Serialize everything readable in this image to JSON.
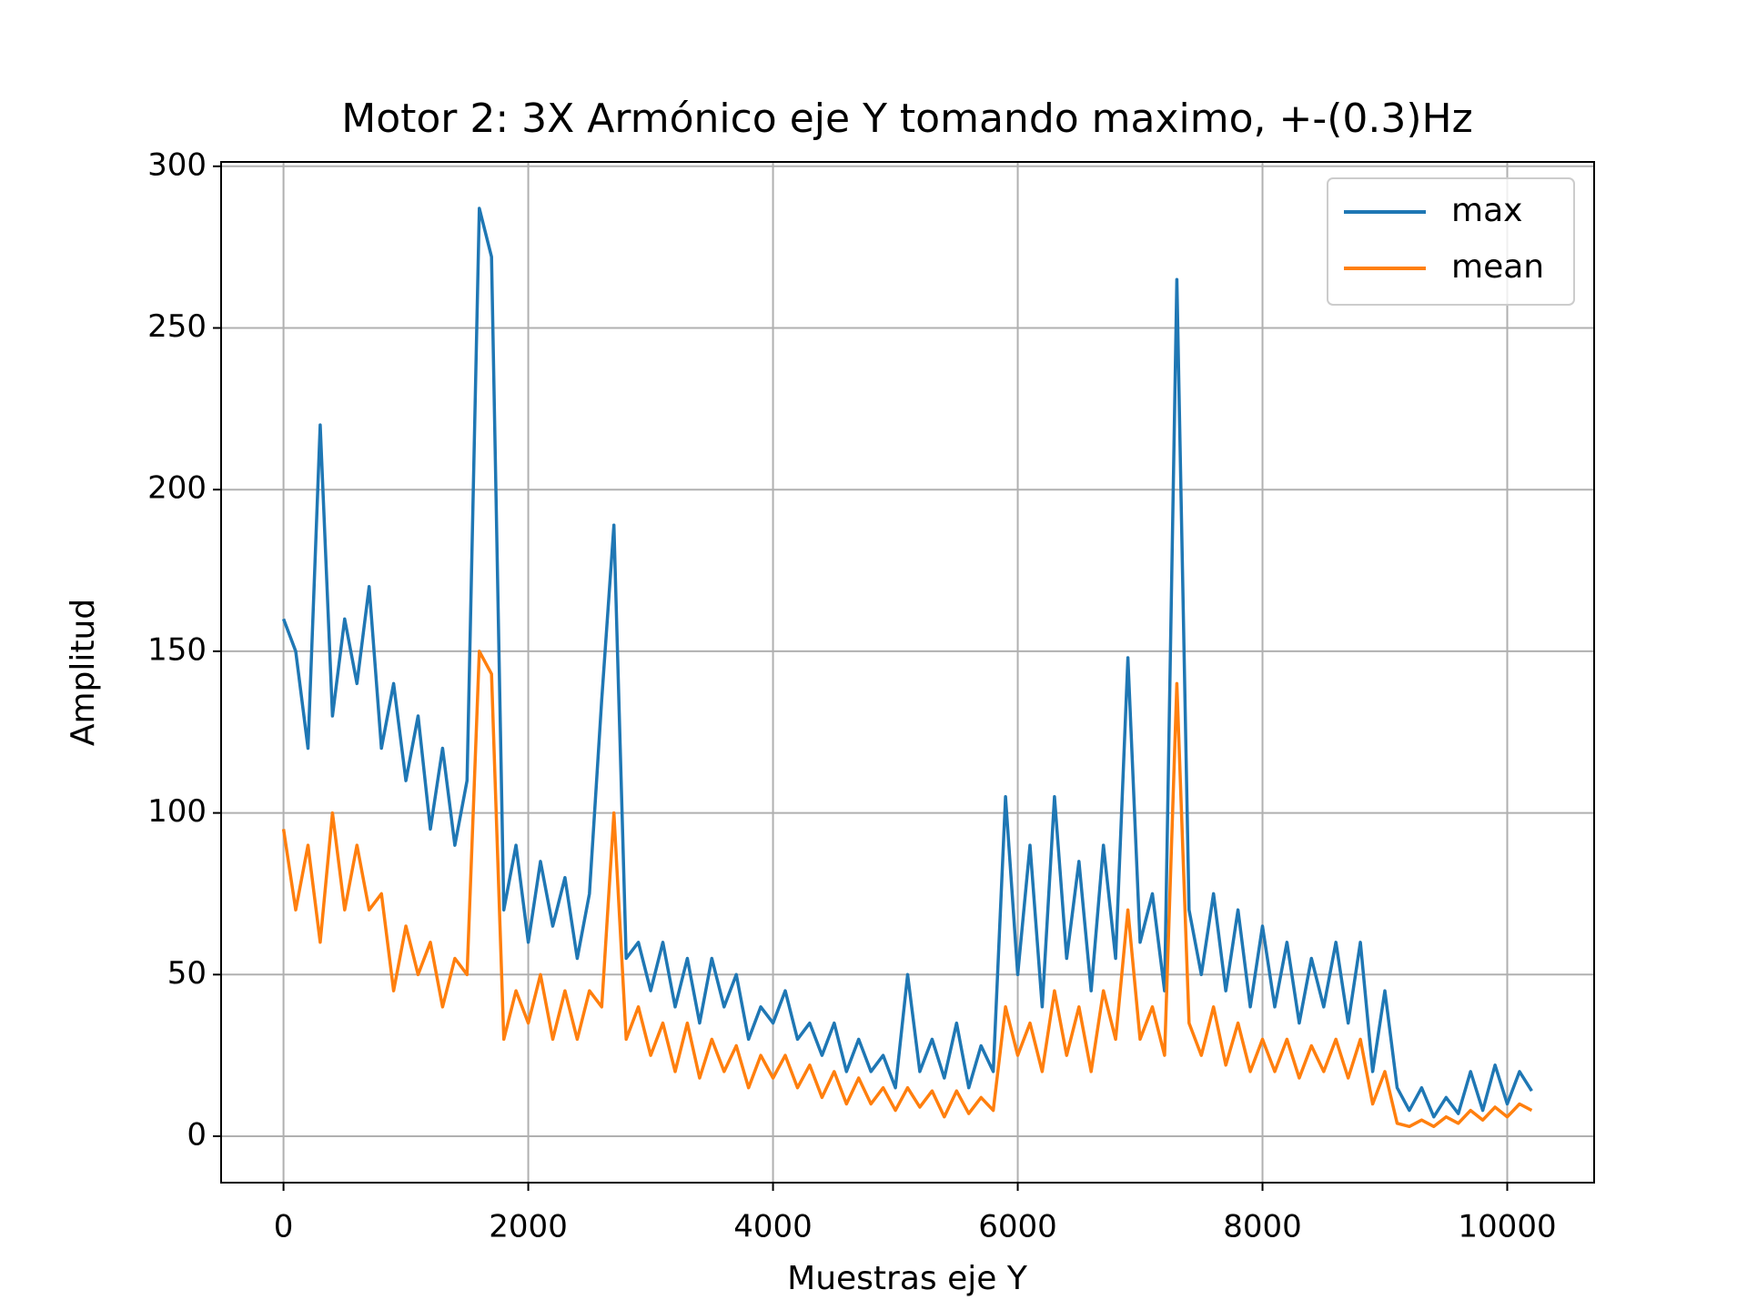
{
  "chart_data": {
    "type": "line",
    "title": "Motor 2: 3X Armónico eje Y tomando maximo, +-(0.3)Hz",
    "x_label": "Muestras eje Y",
    "y_label": "Amplitud",
    "x": [
      0,
      100,
      200,
      300,
      400,
      500,
      600,
      700,
      800,
      900,
      1000,
      1100,
      1200,
      1300,
      1400,
      1500,
      1600,
      1700,
      1800,
      1900,
      2000,
      2100,
      2200,
      2300,
      2400,
      2500,
      2600,
      2700,
      2800,
      2900,
      3000,
      3100,
      3200,
      3300,
      3400,
      3500,
      3600,
      3700,
      3800,
      3900,
      4000,
      4100,
      4200,
      4300,
      4400,
      4500,
      4600,
      4700,
      4800,
      4900,
      5000,
      5100,
      5200,
      5300,
      5400,
      5500,
      5600,
      5700,
      5800,
      5900,
      6000,
      6100,
      6200,
      6300,
      6400,
      6500,
      6600,
      6700,
      6800,
      6900,
      7000,
      7100,
      7200,
      7300,
      7400,
      7500,
      7600,
      7700,
      7800,
      7900,
      8000,
      8100,
      8200,
      8300,
      8400,
      8500,
      8600,
      8700,
      8800,
      8900,
      9000,
      9100,
      9200,
      9300,
      9400,
      9500,
      9600,
      9700,
      9800,
      9900,
      10000,
      10100,
      10200
    ],
    "series": [
      {
        "name": "max",
        "color": "#1f77b4",
        "values": [
          160,
          150,
          120,
          220,
          130,
          160,
          140,
          170,
          120,
          140,
          110,
          130,
          95,
          120,
          90,
          110,
          287,
          272,
          70,
          90,
          60,
          85,
          65,
          80,
          55,
          75,
          135,
          189,
          55,
          60,
          45,
          60,
          40,
          55,
          35,
          55,
          40,
          50,
          30,
          40,
          35,
          45,
          30,
          35,
          25,
          35,
          20,
          30,
          20,
          25,
          15,
          50,
          20,
          30,
          18,
          35,
          15,
          28,
          20,
          105,
          50,
          90,
          40,
          105,
          55,
          85,
          45,
          90,
          55,
          148,
          60,
          75,
          45,
          265,
          70,
          50,
          75,
          45,
          70,
          40,
          65,
          40,
          60,
          35,
          55,
          40,
          60,
          35,
          60,
          20,
          45,
          15,
          8,
          15,
          6,
          12,
          7,
          20,
          8,
          22,
          10,
          20,
          14
        ]
      },
      {
        "name": "mean",
        "color": "#ff7f0e",
        "values": [
          95,
          70,
          90,
          60,
          100,
          70,
          90,
          70,
          75,
          45,
          65,
          50,
          60,
          40,
          55,
          50,
          150,
          143,
          30,
          45,
          35,
          50,
          30,
          45,
          30,
          45,
          40,
          100,
          30,
          40,
          25,
          35,
          20,
          35,
          18,
          30,
          20,
          28,
          15,
          25,
          18,
          25,
          15,
          22,
          12,
          20,
          10,
          18,
          10,
          15,
          8,
          15,
          9,
          14,
          6,
          14,
          7,
          12,
          8,
          40,
          25,
          35,
          20,
          45,
          25,
          40,
          20,
          45,
          30,
          70,
          30,
          40,
          25,
          140,
          35,
          25,
          40,
          22,
          35,
          20,
          30,
          20,
          30,
          18,
          28,
          20,
          30,
          18,
          30,
          10,
          20,
          4,
          3,
          5,
          3,
          6,
          4,
          8,
          5,
          9,
          6,
          10,
          8
        ]
      }
    ],
    "xlim": [
      -510,
      10710
    ],
    "ylim": [
      -14.35,
      301.35
    ],
    "xticks": [
      0,
      2000,
      4000,
      6000,
      8000,
      10000
    ],
    "yticks": [
      0,
      50,
      100,
      150,
      200,
      250,
      300
    ],
    "grid": true,
    "legend": "upper right"
  }
}
